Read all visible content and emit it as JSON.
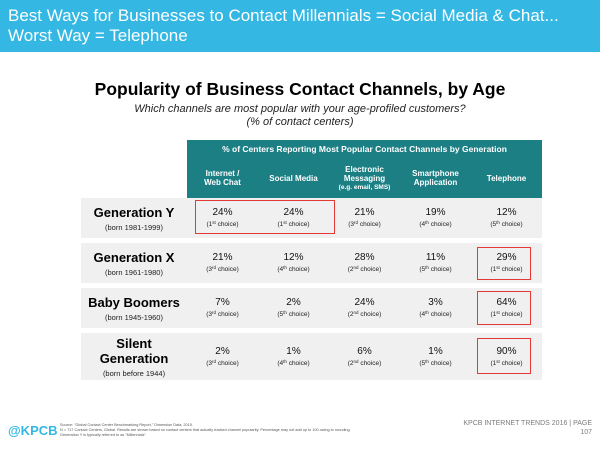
{
  "header": {
    "title": "Best Ways for Businesses to Contact Millennials = Social Media & Chat...\nWorst Way = Telephone"
  },
  "slide": {
    "title": "Popularity of Business Contact Channels, by Age",
    "subtitle": "Which channels are most popular with your age-profiled customers?\n(% of contact centers)"
  },
  "table": {
    "caption": "% of Centers Reporting Most Popular Contact Channels by Generation",
    "columns": [
      {
        "label": "Internet /\nWeb Chat",
        "sub": ""
      },
      {
        "label": "Social Media",
        "sub": ""
      },
      {
        "label": "Electronic\nMessaging",
        "sub": "(e.g. email, SMS)"
      },
      {
        "label": "Smartphone\nApplication",
        "sub": ""
      },
      {
        "label": "Telephone",
        "sub": ""
      }
    ],
    "rows": [
      {
        "name": "Generation Y",
        "born": "(born 1981-1999)",
        "cells": [
          {
            "pct": "24%",
            "rank": "1",
            "suffix": "st",
            "word": "choice"
          },
          {
            "pct": "24%",
            "rank": "1",
            "suffix": "st",
            "word": "choice"
          },
          {
            "pct": "21%",
            "rank": "3",
            "suffix": "rd",
            "word": "choice"
          },
          {
            "pct": "19%",
            "rank": "4",
            "suffix": "th",
            "word": "choice"
          },
          {
            "pct": "12%",
            "rank": "5",
            "suffix": "th",
            "word": "choice"
          }
        ]
      },
      {
        "name": "Generation X",
        "born": "(born 1961-1980)",
        "cells": [
          {
            "pct": "21%",
            "rank": "3",
            "suffix": "rd",
            "word": "choice"
          },
          {
            "pct": "12%",
            "rank": "4",
            "suffix": "th",
            "word": "choice"
          },
          {
            "pct": "28%",
            "rank": "2",
            "suffix": "nd",
            "word": "choice"
          },
          {
            "pct": "11%",
            "rank": "5",
            "suffix": "th",
            "word": "choice"
          },
          {
            "pct": "29%",
            "rank": "1",
            "suffix": "st",
            "word": "choice"
          }
        ]
      },
      {
        "name": "Baby Boomers",
        "born": "(born 1945-1960)",
        "cells": [
          {
            "pct": "7%",
            "rank": "3",
            "suffix": "rd",
            "word": "choice"
          },
          {
            "pct": "2%",
            "rank": "5",
            "suffix": "th",
            "word": "choice"
          },
          {
            "pct": "24%",
            "rank": "2",
            "suffix": "nd",
            "word": "choice"
          },
          {
            "pct": "3%",
            "rank": "4",
            "suffix": "th",
            "word": "choice"
          },
          {
            "pct": "64%",
            "rank": "1",
            "suffix": "st",
            "word": "choice"
          }
        ]
      },
      {
        "name": "Silent\nGeneration",
        "born": "(born before 1944)",
        "cells": [
          {
            "pct": "2%",
            "rank": "3",
            "suffix": "rd",
            "word": "choice"
          },
          {
            "pct": "1%",
            "rank": "4",
            "suffix": "th",
            "word": "choice"
          },
          {
            "pct": "6%",
            "rank": "2",
            "suffix": "nd",
            "word": "choice"
          },
          {
            "pct": "1%",
            "rank": "5",
            "suffix": "th",
            "word": "choice"
          },
          {
            "pct": "90%",
            "rank": "1",
            "suffix": "st",
            "word": "choice"
          }
        ]
      }
    ]
  },
  "footer": {
    "logo": "@KPCB",
    "source_lines": [
      "Source: \"Global Contact Center Benchmarking Report,\" Dimension Data, 2015.",
      "N = 717 Contact Centers, Global. Results are shown based on contact centers that actually tracked channel popularity. Percentage may not add up to 100 owing to rounding.",
      "Generation Y is typically referred to as \"Millennials\""
    ],
    "right_text": "KPCB INTERNET TRENDS 2016  |  PAGE",
    "page_number": "107"
  },
  "colors": {
    "header_band": "#34b8e3",
    "table_header": "#1c7f84",
    "row_background": "#f0f0f0",
    "highlight_box": "#e53935"
  }
}
